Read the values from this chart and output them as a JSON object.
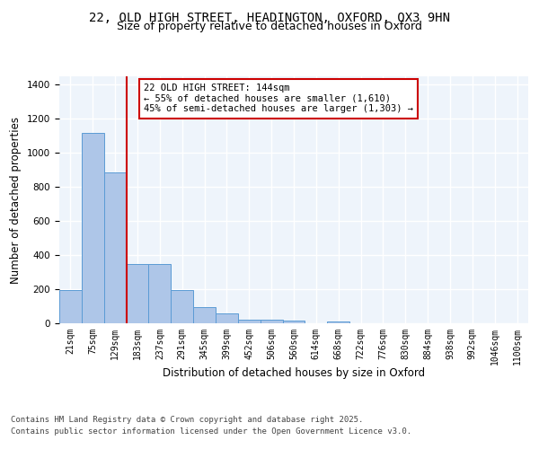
{
  "title_line1": "22, OLD HIGH STREET, HEADINGTON, OXFORD, OX3 9HN",
  "title_line2": "Size of property relative to detached houses in Oxford",
  "xlabel": "Distribution of detached houses by size in Oxford",
  "ylabel": "Number of detached properties",
  "categories": [
    "21sqm",
    "75sqm",
    "129sqm",
    "183sqm",
    "237sqm",
    "291sqm",
    "345sqm",
    "399sqm",
    "452sqm",
    "506sqm",
    "560sqm",
    "614sqm",
    "668sqm",
    "722sqm",
    "776sqm",
    "830sqm",
    "884sqm",
    "938sqm",
    "992sqm",
    "1046sqm",
    "1100sqm"
  ],
  "values": [
    195,
    1120,
    885,
    350,
    350,
    195,
    95,
    58,
    22,
    20,
    18,
    0,
    12,
    0,
    0,
    0,
    0,
    0,
    0,
    0,
    0
  ],
  "bar_color": "#AEC6E8",
  "bar_edge_color": "#5B9BD5",
  "vline_x_index": 2,
  "vline_color": "#CC0000",
  "annotation_text": "22 OLD HIGH STREET: 144sqm\n← 55% of detached houses are smaller (1,610)\n45% of semi-detached houses are larger (1,303) →",
  "annotation_box_color": "#CC0000",
  "ylim": [
    0,
    1450
  ],
  "background_color": "#EEF4FB",
  "footer_line1": "Contains HM Land Registry data © Crown copyright and database right 2025.",
  "footer_line2": "Contains public sector information licensed under the Open Government Licence v3.0.",
  "grid_color": "#FFFFFF",
  "title_fontsize": 10,
  "subtitle_fontsize": 9,
  "axis_label_fontsize": 8.5,
  "tick_fontsize": 7,
  "annotation_fontsize": 7.5,
  "footer_fontsize": 6.5
}
